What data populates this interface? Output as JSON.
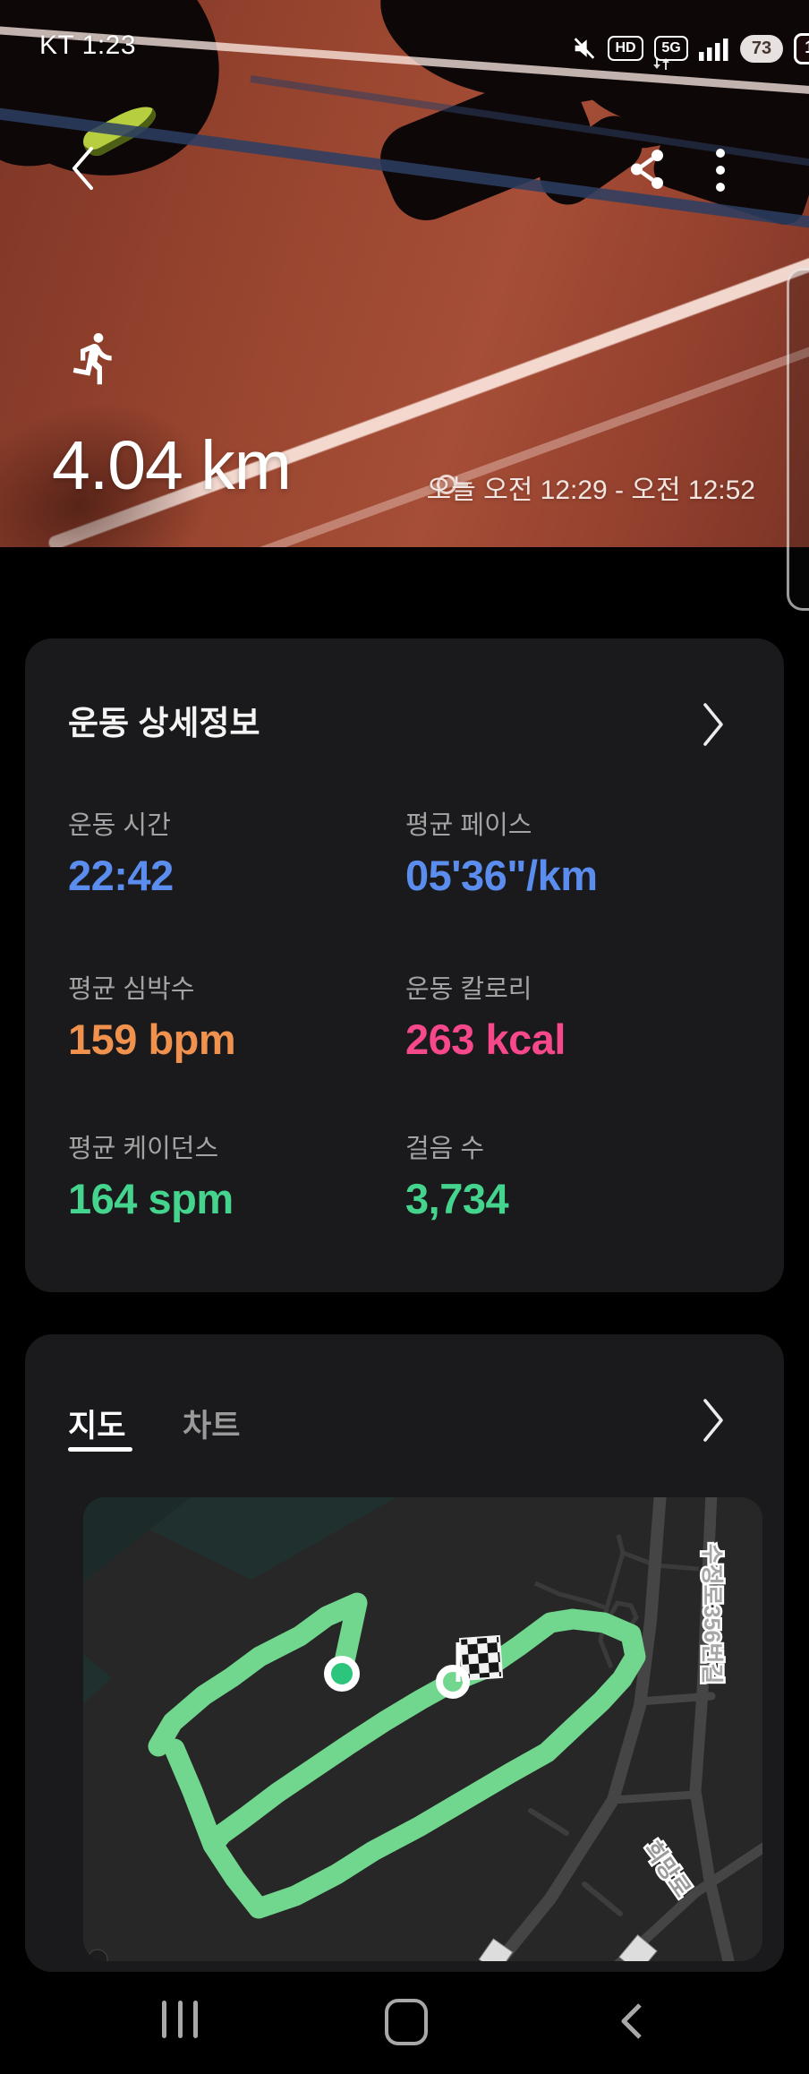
{
  "status_bar": {
    "carrier_time": "KT 1:23",
    "hd_label": "HD",
    "network_label": "5G",
    "battery_level": "73",
    "notification_count": "1"
  },
  "hero": {
    "distance": "4.04 km",
    "date_range": "오늘 오전 12:29 - 오전 12:52"
  },
  "details_card": {
    "title": "운동 상세정보",
    "stats": [
      {
        "label": "운동 시간",
        "value": "22:42",
        "color": "#5b8def"
      },
      {
        "label": "평균 페이스",
        "value": "05'36\"/km",
        "color": "#5b8def"
      },
      {
        "label": "평균 심박수",
        "value": "159 bpm",
        "color": "#f0924d"
      },
      {
        "label": "운동 칼로리",
        "value": "263 kcal",
        "color": "#f8488c"
      },
      {
        "label": "평균 케이던스",
        "value": "164 spm",
        "color": "#45d48e"
      },
      {
        "label": "걸음 수",
        "value": "3,734",
        "color": "#45d48e"
      }
    ]
  },
  "map_card": {
    "tabs": [
      {
        "label": "지도",
        "active": true
      },
      {
        "label": "차트",
        "active": false
      }
    ],
    "street_labels": {
      "main": "수정로356번길",
      "secondary": "희망로"
    },
    "route_color": "#72d78e"
  },
  "colors": {
    "accent_blue": "#5b8def",
    "accent_orange": "#f0924d",
    "accent_pink": "#f8488c",
    "accent_green": "#45d48e",
    "card_background": "#1a1a1c"
  }
}
